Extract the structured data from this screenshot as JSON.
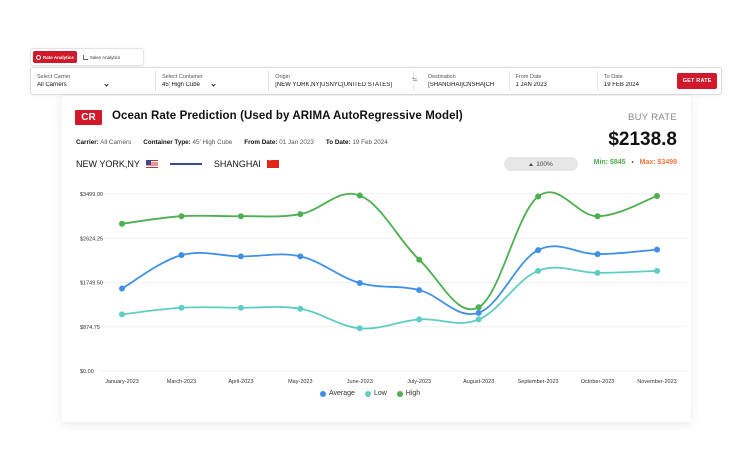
{
  "tabs": [
    {
      "label": "Rate Analytics",
      "active": true,
      "icon": "target-icon"
    },
    {
      "label": "Sales Analytics",
      "active": false,
      "icon": "line-chart-icon"
    }
  ],
  "filters": {
    "carrier": {
      "label": "Select Carrier",
      "value": "All Carriers"
    },
    "container": {
      "label": "Select Container",
      "value": "45' High Cube"
    },
    "origin": {
      "label": "Origin",
      "value": "[NEW YORK,NY]USNYC[UNITED STATES]"
    },
    "destination": {
      "label": "Destination",
      "value": "[SHANGHAI]CNSHA[CH"
    },
    "from_date": {
      "label": "From Date",
      "value": "1 JAN 2023"
    },
    "to_date": {
      "label": "To Date",
      "value": "19 FEB 2024"
    },
    "get_rate_label": "GET RATE"
  },
  "card": {
    "badge": "CR",
    "title": "Ocean Rate Prediction (Used by ARIMA AutoRegressive Model)",
    "buy_rate_label": "BUY RATE",
    "buy_rate_value": "$2138.8",
    "meta": {
      "carrier_label": "Carrier:",
      "carrier_value": "All Carriers",
      "container_label": "Container Type:",
      "container_value": "45' High Cube",
      "from_label": "From Date:",
      "from_value": "01 Jan 2023",
      "to_label": "To Date:",
      "to_value": "19 Feb 2024"
    },
    "route": {
      "origin": "NEW YORK,NY",
      "destination": "SHANGHAI"
    },
    "confidence": "100%",
    "min": "Min: $845",
    "max": "Max: $3499"
  },
  "colors": {
    "accent": "#d0192a",
    "average": "#3f8fe6",
    "low": "#5fcdc4",
    "high": "#4caf50",
    "max": "#f0783c"
  },
  "chart_data": {
    "type": "line",
    "categories": [
      "January-2023",
      "March-2023",
      "April-2023",
      "May-2023",
      "June-2023",
      "July-2023",
      "August-2023",
      "September-2023",
      "October-2023",
      "November-2023"
    ],
    "y_ticks": [
      "$0.00",
      "$874.75",
      "$1749.50",
      "$2624.25",
      "$3499.00"
    ],
    "ylim": [
      0,
      3499
    ],
    "series": [
      {
        "name": "Average",
        "color": "#3f8fe6",
        "values": [
          1630,
          2290,
          2265,
          2265,
          1740,
          1600,
          1150,
          2390,
          2310,
          2400
        ]
      },
      {
        "name": "Low",
        "color": "#5fcdc4",
        "values": [
          1120,
          1250,
          1250,
          1230,
          845,
          1020,
          1020,
          1980,
          1940,
          1980
        ]
      },
      {
        "name": "High",
        "color": "#4caf50",
        "values": [
          2910,
          3060,
          3060,
          3100,
          3470,
          2200,
          1260,
          3450,
          3060,
          3460
        ]
      }
    ],
    "grid": "horizontal",
    "legend": "bottom-center"
  }
}
